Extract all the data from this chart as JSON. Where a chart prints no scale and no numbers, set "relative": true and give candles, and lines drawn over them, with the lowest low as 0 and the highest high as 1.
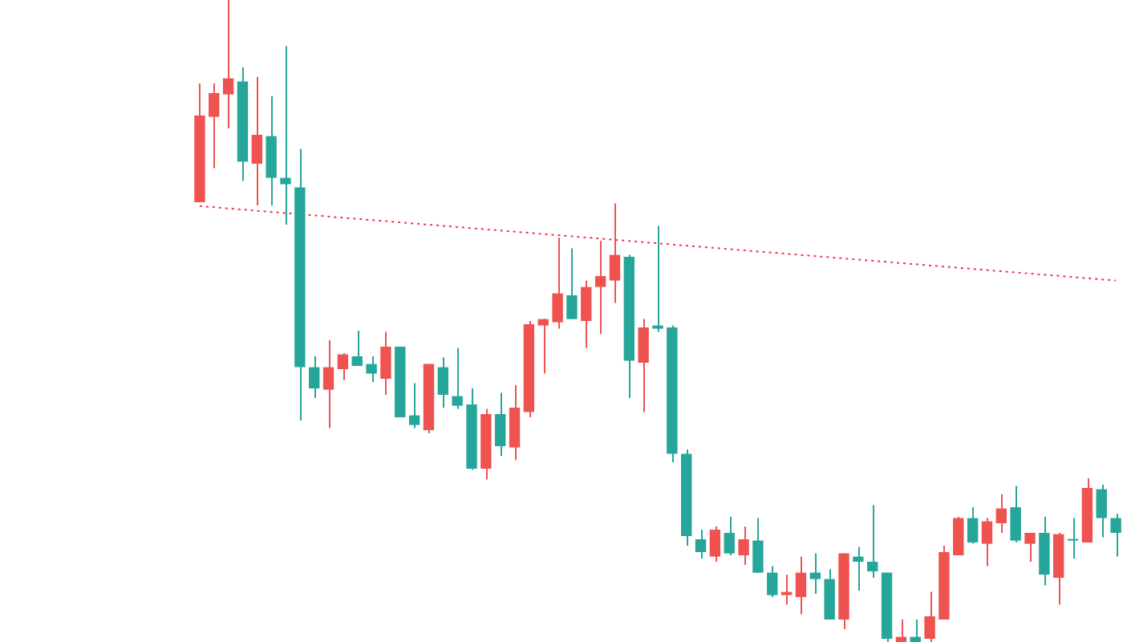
{
  "chart_data": {
    "type": "candlestick",
    "relative": true,
    "grid": false,
    "legend": false,
    "tick_labels": false,
    "categories": [
      null,
      null,
      null,
      null,
      null,
      null,
      null,
      null,
      null,
      null,
      null,
      null,
      null,
      null,
      null,
      null,
      null,
      null,
      null,
      null,
      null,
      null,
      null,
      null,
      null,
      null,
      null,
      null,
      null,
      null,
      null,
      null,
      null,
      null,
      null,
      null,
      null,
      null,
      null,
      null,
      null,
      null,
      null,
      null,
      null,
      null,
      null,
      null,
      null,
      null,
      null,
      null,
      null,
      null,
      null,
      null,
      null,
      null,
      null,
      null,
      null,
      null,
      null,
      null,
      null
    ],
    "ohlc": [
      [
        0.685,
        0.87,
        0.685,
        0.82
      ],
      [
        0.818,
        0.87,
        0.738,
        0.855
      ],
      [
        0.853,
        1,
        0.8,
        0.878
      ],
      [
        0.873,
        0.895,
        0.718,
        0.748
      ],
      [
        0.745,
        0.88,
        0.68,
        0.79
      ],
      [
        0.788,
        0.85,
        0.68,
        0.723
      ],
      [
        0.723,
        0.928,
        0.65,
        0.713
      ],
      [
        0.708,
        0.768,
        0.345,
        0.428
      ],
      [
        0.428,
        0.445,
        0.38,
        0.395
      ],
      [
        0.393,
        0.47,
        0.333,
        0.428
      ],
      [
        0.425,
        0.45,
        0.408,
        0.448
      ],
      [
        0.445,
        0.485,
        0.43,
        0.43
      ],
      [
        0.433,
        0.445,
        0.405,
        0.418
      ],
      [
        0.41,
        0.483,
        0.385,
        0.46
      ],
      [
        0.46,
        0.46,
        0.35,
        0.35
      ],
      [
        0.353,
        0.403,
        0.333,
        0.338
      ],
      [
        0.33,
        0.433,
        0.325,
        0.433
      ],
      [
        0.428,
        0.443,
        0.365,
        0.385
      ],
      [
        0.383,
        0.458,
        0.363,
        0.368
      ],
      [
        0.37,
        0.395,
        0.268,
        0.27
      ],
      [
        0.27,
        0.363,
        0.253,
        0.355
      ],
      [
        0.355,
        0.388,
        0.29,
        0.305
      ],
      [
        0.303,
        0.4,
        0.283,
        0.365
      ],
      [
        0.358,
        0.5,
        0.35,
        0.495
      ],
      [
        0.493,
        0.503,
        0.418,
        0.503
      ],
      [
        0.498,
        0.63,
        0.488,
        0.543
      ],
      [
        0.54,
        0.613,
        0.503,
        0.503
      ],
      [
        0.5,
        0.563,
        0.458,
        0.553
      ],
      [
        0.553,
        0.625,
        0.48,
        0.57
      ],
      [
        0.563,
        0.683,
        0.528,
        0.603
      ],
      [
        0.6,
        0.603,
        0.38,
        0.438
      ],
      [
        0.435,
        0.503,
        0.358,
        0.49
      ],
      [
        0.493,
        0.648,
        0.483,
        0.488
      ],
      [
        0.49,
        0.493,
        0.28,
        0.293
      ],
      [
        0.293,
        0.3,
        0.15,
        0.165
      ],
      [
        0.16,
        0.175,
        0.13,
        0.14
      ],
      [
        0.133,
        0.18,
        0.125,
        0.175
      ],
      [
        0.17,
        0.195,
        0.135,
        0.138
      ],
      [
        0.135,
        0.18,
        0.12,
        0.16
      ],
      [
        0.158,
        0.193,
        0.108,
        0.108
      ],
      [
        0.108,
        0.118,
        0.07,
        0.073
      ],
      [
        0.073,
        0.105,
        0.058,
        0.078
      ],
      [
        0.07,
        0.133,
        0.043,
        0.108
      ],
      [
        0.108,
        0.138,
        0.075,
        0.098
      ],
      [
        0.098,
        0.113,
        0.035,
        0.035
      ],
      [
        0.035,
        0.138,
        0.02,
        0.138
      ],
      [
        0.133,
        0.148,
        0.08,
        0.125
      ],
      [
        0.125,
        0.213,
        0.1,
        0.11
      ],
      [
        0.108,
        0.108,
        0,
        0.005
      ],
      [
        0,
        0.035,
        0,
        0.008
      ],
      [
        0.008,
        0.035,
        0,
        0
      ],
      [
        0.005,
        0.078,
        0,
        0.04
      ],
      [
        0.035,
        0.15,
        0.035,
        0.14
      ],
      [
        0.135,
        0.195,
        0.135,
        0.193
      ],
      [
        0.193,
        0.21,
        0.153,
        0.155
      ],
      [
        0.153,
        0.193,
        0.118,
        0.188
      ],
      [
        0.185,
        0.23,
        0.17,
        0.208
      ],
      [
        0.21,
        0.243,
        0.155,
        0.158
      ],
      [
        0.153,
        0.17,
        0.125,
        0.17
      ],
      [
        0.17,
        0.195,
        0.088,
        0.105
      ],
      [
        0.1,
        0.17,
        0.058,
        0.168
      ],
      [
        0.16,
        0.193,
        0.13,
        0.158
      ],
      [
        0.155,
        0.255,
        0.155,
        0.24
      ],
      [
        0.238,
        0.245,
        0.163,
        0.193
      ],
      [
        0.193,
        0.2,
        0.133,
        0.17
      ]
    ],
    "colors": [
      "#ef5350",
      "#ef5350",
      "#ef5350",
      "#26a69a",
      "#ef5350",
      "#26a69a",
      "#26a69a",
      "#26a69a",
      "#26a69a",
      "#ef5350",
      "#ef5350",
      "#26a69a",
      "#26a69a",
      "#ef5350",
      "#26a69a",
      "#26a69a",
      "#ef5350",
      "#26a69a",
      "#26a69a",
      "#26a69a",
      "#ef5350",
      "#26a69a",
      "#ef5350",
      "#ef5350",
      "#ef5350",
      "#ef5350",
      "#26a69a",
      "#ef5350",
      "#ef5350",
      "#ef5350",
      "#26a69a",
      "#ef5350",
      "#26a69a",
      "#26a69a",
      "#26a69a",
      "#26a69a",
      "#ef5350",
      "#26a69a",
      "#ef5350",
      "#26a69a",
      "#26a69a",
      "#ef5350",
      "#ef5350",
      "#26a69a",
      "#26a69a",
      "#ef5350",
      "#26a69a",
      "#26a69a",
      "#26a69a",
      "#ef5350",
      "#26a69a",
      "#ef5350",
      "#ef5350",
      "#ef5350",
      "#26a69a",
      "#ef5350",
      "#ef5350",
      "#26a69a",
      "#ef5350",
      "#26a69a",
      "#ef5350",
      "#26a69a",
      "#ef5350",
      "#26a69a",
      "#26a69a"
    ],
    "series": [
      {
        "type": "line",
        "color": "#f23645",
        "line_style": "dotted",
        "values": [
          0.679,
          null,
          null,
          null,
          null,
          null,
          null,
          null,
          null,
          null,
          null,
          null,
          null,
          null,
          null,
          null,
          null,
          null,
          null,
          null,
          null,
          null,
          null,
          null,
          null,
          null,
          null,
          null,
          null,
          null,
          null,
          null,
          null,
          null,
          null,
          null,
          null,
          null,
          null,
          null,
          null,
          null,
          null,
          null,
          null,
          null,
          null,
          null,
          null,
          null,
          null,
          null,
          null,
          null,
          null,
          null,
          null,
          null,
          null,
          null,
          null,
          null,
          null,
          null,
          0.563
        ]
      }
    ]
  }
}
